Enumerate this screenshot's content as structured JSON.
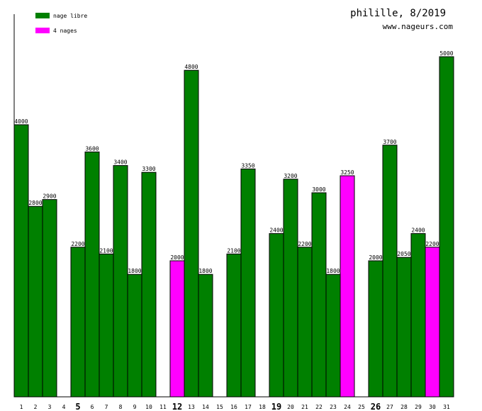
{
  "header": {
    "title": "philille, 8/2019",
    "site": "www.nageurs.com"
  },
  "legend": [
    {
      "label": "nage libre",
      "color": "#008000"
    },
    {
      "label": "4 nages",
      "color": "#ff00ff"
    }
  ],
  "chart_data": {
    "type": "bar",
    "categories": [
      "1",
      "2",
      "3",
      "4",
      "5",
      "6",
      "7",
      "8",
      "9",
      "10",
      "11",
      "12",
      "13",
      "14",
      "15",
      "16",
      "17",
      "18",
      "19",
      "20",
      "21",
      "22",
      "23",
      "24",
      "25",
      "26",
      "27",
      "28",
      "29",
      "30",
      "31"
    ],
    "bold_categories": [
      "5",
      "12",
      "19",
      "26"
    ],
    "series": [
      {
        "name": "nage libre",
        "color": "#008000",
        "values": [
          4000,
          2800,
          2900,
          null,
          2200,
          3600,
          2100,
          3400,
          1800,
          3300,
          null,
          null,
          4800,
          1800,
          null,
          2100,
          3350,
          null,
          2400,
          3200,
          2200,
          3000,
          1800,
          null,
          null,
          2000,
          3700,
          2050,
          2400,
          null,
          5000
        ]
      },
      {
        "name": "4 nages",
        "color": "#ff00ff",
        "values": [
          null,
          null,
          null,
          null,
          null,
          null,
          null,
          null,
          null,
          null,
          null,
          2000,
          null,
          null,
          null,
          null,
          null,
          null,
          null,
          null,
          null,
          null,
          null,
          3250,
          null,
          null,
          null,
          null,
          null,
          2200,
          null
        ]
      }
    ],
    "ylim": [
      0,
      5000
    ],
    "grid": false,
    "legend_position": "top-left"
  }
}
